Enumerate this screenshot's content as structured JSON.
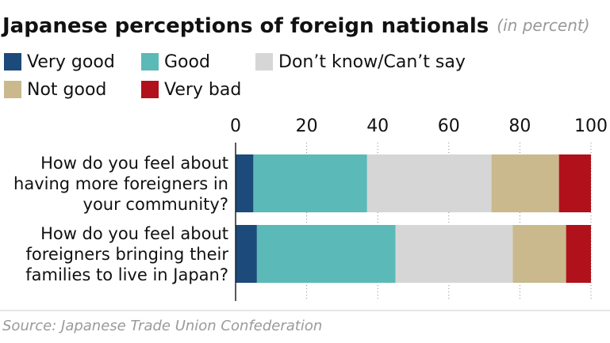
{
  "chart_data": {
    "type": "stacked-barh",
    "title": "Japanese perceptions of foreign nationals",
    "subtitle": "(in percent)",
    "categories": [
      "How do you feel about having more foreigners in your community?",
      "How do you feel about foreigners bringing their families to live in Japan?"
    ],
    "series": [
      {
        "name": "Very good",
        "color": "#1b4a7b",
        "values": [
          5,
          6
        ]
      },
      {
        "name": "Good",
        "color": "#5bb9b8",
        "values": [
          32,
          39
        ]
      },
      {
        "name": "Don’t know/Can’t say",
        "color": "#d6d6d6",
        "values": [
          35,
          33
        ]
      },
      {
        "name": "Not good",
        "color": "#c9b98d",
        "values": [
          19,
          15
        ]
      },
      {
        "name": "Very bad",
        "color": "#b0111b",
        "values": [
          9,
          7
        ]
      }
    ],
    "xlim": [
      0,
      100
    ],
    "xticks": [
      0,
      20,
      40,
      60,
      80,
      100
    ],
    "grid": true,
    "source": "Source: Japanese Trade Union Confederation"
  }
}
